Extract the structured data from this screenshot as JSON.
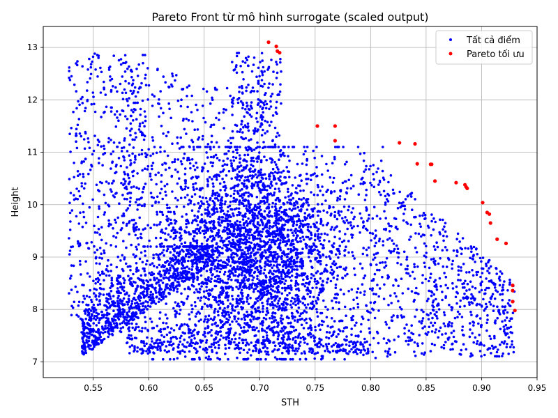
{
  "chart_data": {
    "type": "scatter",
    "title": "Pareto Front từ mô hình surrogate (scaled output)",
    "xlabel": "STH",
    "ylabel": "Height",
    "xlim": [
      0.505,
      0.95
    ],
    "ylim": [
      6.7,
      13.4
    ],
    "xticks": [
      0.55,
      0.6,
      0.65,
      0.7,
      0.75,
      0.8,
      0.85,
      0.9,
      0.95
    ],
    "xtick_labels": [
      "0.55",
      "0.60",
      "0.65",
      "0.70",
      "0.75",
      "0.80",
      "0.85",
      "0.90",
      "0.95"
    ],
    "yticks": [
      7,
      8,
      9,
      10,
      11,
      12,
      13
    ],
    "ytick_labels": [
      "7",
      "8",
      "9",
      "10",
      "11",
      "12",
      "13"
    ],
    "grid": true,
    "legend_position": "top-right",
    "series": [
      {
        "name": "Tất cả điểm",
        "color": "#0000ff",
        "clusters": [
          {
            "region": "main-cloud",
            "x_range": [
              0.6,
              0.8
            ],
            "y_range": [
              7.0,
              11.1
            ],
            "approx_points": 3000
          },
          {
            "region": "lower-left-diagonal",
            "x_range": [
              0.54,
              0.65
            ],
            "y_range": [
              7.05,
              9.0
            ],
            "approx_points": 900
          },
          {
            "region": "left-column",
            "x_range": [
              0.525,
              0.6
            ],
            "y_range": [
              7.5,
              13.0
            ],
            "approx_points": 500
          },
          {
            "region": "upper-left",
            "x_range": [
              0.58,
              0.7
            ],
            "y_range": [
              9.5,
              12.8
            ],
            "approx_points": 450
          },
          {
            "region": "upper-ridge",
            "x_range": [
              0.68,
              0.72
            ],
            "y_range": [
              10.5,
              12.9
            ],
            "approx_points": 200
          },
          {
            "region": "right-tail",
            "x_range": [
              0.8,
              0.93
            ],
            "y_range": [
              7.0,
              10.5
            ],
            "approx_points": 700
          }
        ]
      },
      {
        "name": "Pareto tối ưu",
        "color": "#ff0000",
        "points": [
          {
            "x": 0.708,
            "y": 13.1
          },
          {
            "x": 0.715,
            "y": 13.02
          },
          {
            "x": 0.716,
            "y": 12.93
          },
          {
            "x": 0.718,
            "y": 12.9
          },
          {
            "x": 0.752,
            "y": 11.5
          },
          {
            "x": 0.768,
            "y": 11.5
          },
          {
            "x": 0.768,
            "y": 11.22
          },
          {
            "x": 0.826,
            "y": 11.18
          },
          {
            "x": 0.84,
            "y": 11.16
          },
          {
            "x": 0.842,
            "y": 10.78
          },
          {
            "x": 0.854,
            "y": 10.77
          },
          {
            "x": 0.855,
            "y": 10.77
          },
          {
            "x": 0.858,
            "y": 10.45
          },
          {
            "x": 0.877,
            "y": 10.42
          },
          {
            "x": 0.885,
            "y": 10.38
          },
          {
            "x": 0.886,
            "y": 10.34
          },
          {
            "x": 0.887,
            "y": 10.31
          },
          {
            "x": 0.901,
            "y": 10.04
          },
          {
            "x": 0.905,
            "y": 9.85
          },
          {
            "x": 0.907,
            "y": 9.82
          },
          {
            "x": 0.908,
            "y": 9.65
          },
          {
            "x": 0.914,
            "y": 9.34
          },
          {
            "x": 0.922,
            "y": 9.26
          },
          {
            "x": 0.928,
            "y": 8.46
          },
          {
            "x": 0.928,
            "y": 8.36
          },
          {
            "x": 0.928,
            "y": 8.15
          },
          {
            "x": 0.93,
            "y": 7.98
          }
        ]
      }
    ]
  }
}
